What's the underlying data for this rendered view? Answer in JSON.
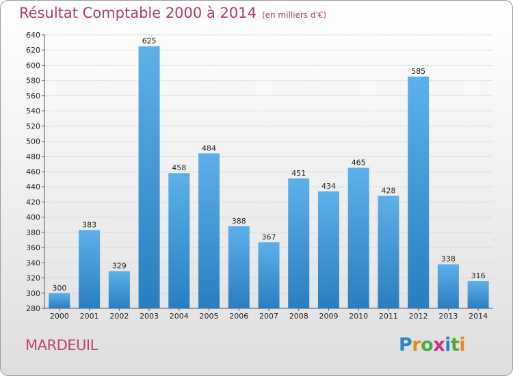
{
  "header": {
    "title": "Résultat Comptable 2000 à 2014",
    "unit": "(en milliers d'€)"
  },
  "footer": {
    "commune": "MARDEUIL",
    "logo_letters": [
      {
        "char": "P",
        "color": "#2a86c6"
      },
      {
        "char": "r",
        "color": "#e58a1f"
      },
      {
        "char": "o",
        "color": "#53a83a"
      },
      {
        "char": "x",
        "color": "#d8267a"
      },
      {
        "char": "i",
        "color": "#2a86c6"
      },
      {
        "char": "t",
        "color": "#53a83a"
      },
      {
        "char": "i",
        "color": "#e58a1f"
      }
    ]
  },
  "colors": {
    "bar_light": "#5db0e8",
    "bar_dark": "#2a7ec0",
    "title": "#b03a6a"
  },
  "chart_data": {
    "type": "bar",
    "title": "Résultat Comptable 2000 à 2014",
    "subtitle": "(en milliers d'€)",
    "categories": [
      "2000",
      "2001",
      "2002",
      "2003",
      "2004",
      "2005",
      "2006",
      "2007",
      "2008",
      "2009",
      "2010",
      "2011",
      "2012",
      "2013",
      "2014"
    ],
    "values": [
      300,
      383,
      329,
      625,
      458,
      484,
      388,
      367,
      451,
      434,
      465,
      428,
      585,
      338,
      316
    ],
    "ylim": [
      280,
      640
    ],
    "yticks": [
      280,
      300,
      320,
      340,
      360,
      380,
      400,
      420,
      440,
      460,
      480,
      500,
      520,
      540,
      560,
      580,
      600,
      620,
      640
    ],
    "grid": true
  }
}
